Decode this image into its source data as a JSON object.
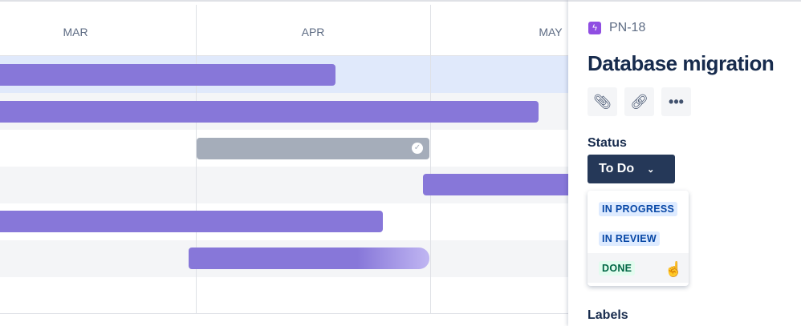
{
  "timeline": {
    "months": [
      "MAR",
      "APR",
      "MAY"
    ],
    "colors": {
      "bar": "#8777d9",
      "done_bar": "#a5adba",
      "selected_row": "#e0e9fb",
      "alt_row": "#f4f5f7"
    }
  },
  "panel": {
    "issue_key": "PN-18",
    "issue_type_icon": "lightning-icon",
    "title": "Database migration",
    "actions": [
      "paperclip-icon",
      "link-icon",
      "more-icon"
    ],
    "status_label": "Status",
    "status_value": "To Do",
    "status_options": [
      {
        "label": "IN PROGRESS",
        "color": "#0747a6",
        "bg": "#deebff"
      },
      {
        "label": "IN REVIEW",
        "color": "#0747a6",
        "bg": "#deebff"
      },
      {
        "label": "DONE",
        "color": "#006644",
        "bg": "#e3fcef"
      }
    ],
    "labels_label": "Labels"
  }
}
